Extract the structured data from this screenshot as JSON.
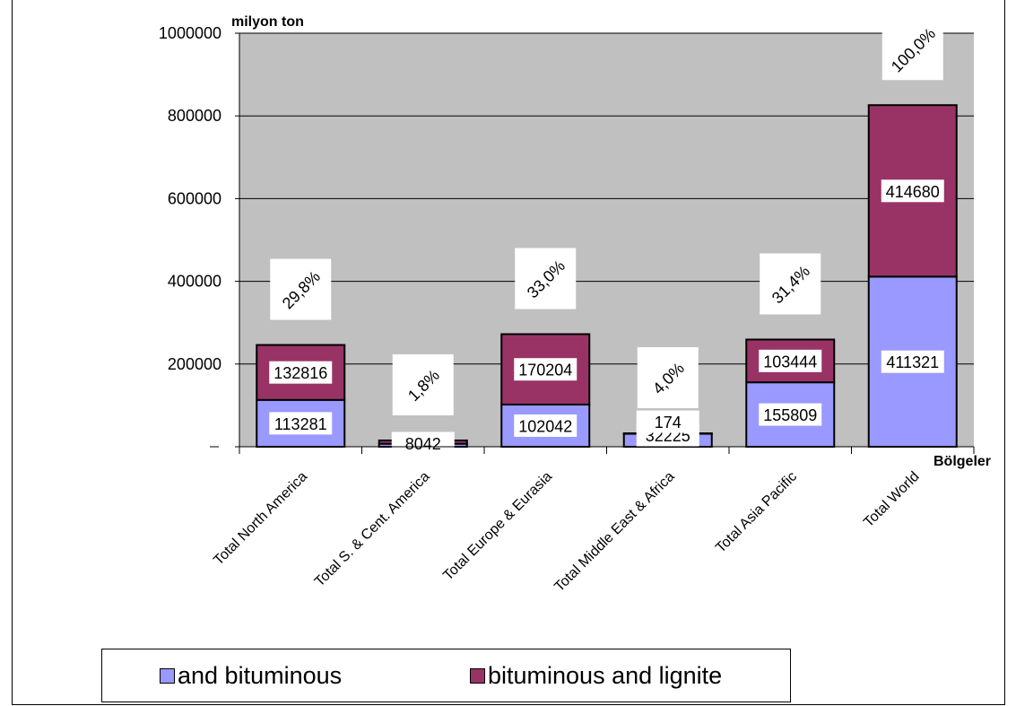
{
  "chart_data": {
    "type": "bar",
    "stacked": true,
    "y_unit_label": "milyon ton",
    "x_unit_label": "Bölgeler",
    "ylim": [
      0,
      1000000
    ],
    "yticks": [
      "",
      "200000",
      "400000",
      "600000",
      "800000",
      "1000000"
    ],
    "categories": [
      "Total North America",
      "Total S. & Cent. America",
      "Total Europe & Eurasia",
      "Total Middle East & Africa",
      "Total Asia Pacific",
      "Total World"
    ],
    "series": [
      {
        "name": "and bituminous",
        "color": "#9999ff",
        "values": [
          113281,
          7229,
          102042,
          32225,
          155809,
          411321
        ],
        "labels": [
          "113281",
          "",
          "102042",
          "32225",
          "155809",
          "411321"
        ]
      },
      {
        "name": "bituminous and lignite",
        "color": "#993366",
        "values": [
          132816,
          8042,
          170204,
          174,
          103444,
          414680
        ],
        "labels": [
          "132816",
          "8042",
          "170204",
          "174",
          "103444",
          "414680"
        ]
      }
    ],
    "share_labels": [
      "29,8%",
      "1,8%",
      "33,0%",
      "4,0%",
      "31,4%",
      "100,0%"
    ],
    "grid": true,
    "plot_background": "#c0c0c0",
    "legend_position": "bottom"
  }
}
